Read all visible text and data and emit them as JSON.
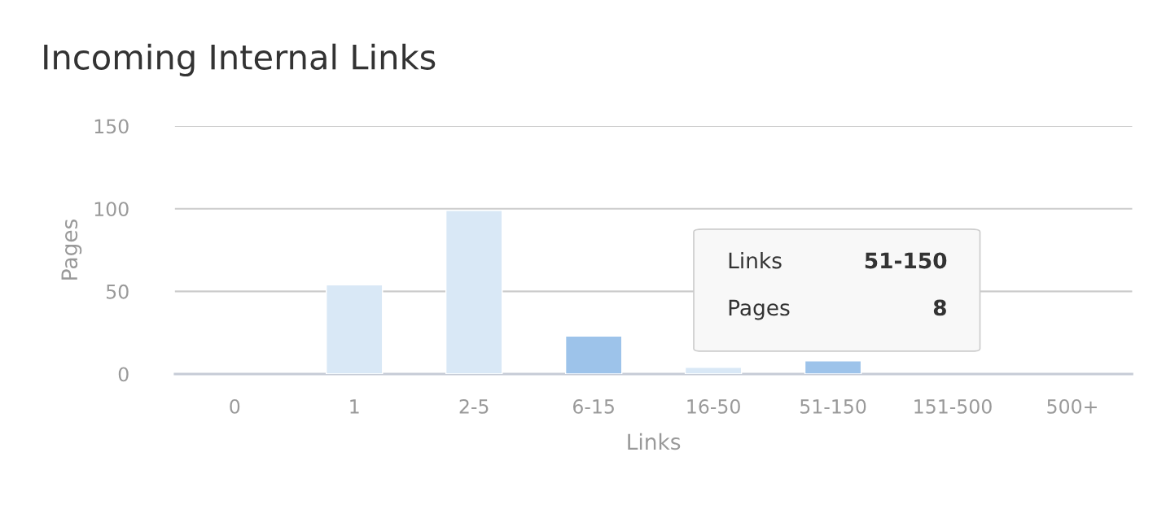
{
  "chart_data": {
    "type": "bar",
    "title": "Incoming Internal Links",
    "xlabel": "Links",
    "ylabel": "Pages",
    "categories": [
      "0",
      "1",
      "2-5",
      "6-15",
      "16-50",
      "51-150",
      "151-500",
      "500+"
    ],
    "values": [
      0,
      54,
      99,
      23,
      4,
      8,
      0,
      0
    ],
    "colors": [
      null,
      "#d9e8f6",
      "#d9e8f6",
      "#9dc3ea",
      "#d9e8f6",
      "#9dc3ea",
      null,
      null
    ],
    "ylim": [
      0,
      150
    ],
    "yticks": [
      0,
      50,
      100,
      150
    ],
    "grid": "y",
    "legend": false,
    "annotations": [
      "Links",
      "51-150",
      "Pages",
      "8"
    ]
  }
}
